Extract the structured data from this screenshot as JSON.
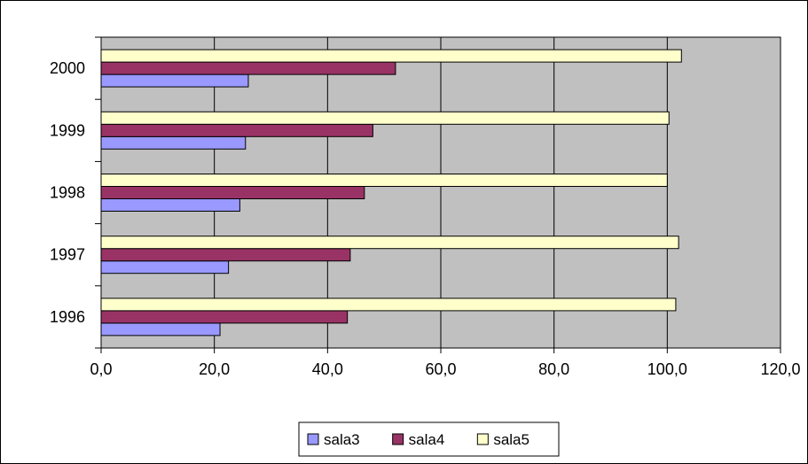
{
  "chart_data": {
    "type": "bar",
    "orientation": "horizontal",
    "categories": [
      "1996",
      "1997",
      "1998",
      "1999",
      "2000"
    ],
    "series": [
      {
        "name": "sala3",
        "values": [
          21.0,
          22.5,
          24.5,
          25.5,
          26.0
        ]
      },
      {
        "name": "sala4",
        "values": [
          43.5,
          44.0,
          46.5,
          48.0,
          52.0
        ]
      },
      {
        "name": "sala5",
        "values": [
          101.5,
          102.0,
          100.0,
          100.3,
          102.5
        ]
      }
    ],
    "xticks": [
      "0,0",
      "20,0",
      "40,0",
      "60,0",
      "80,0",
      "100,0",
      "120,0"
    ],
    "xlim": [
      0,
      120
    ],
    "grid": true,
    "legend_position": "bottom",
    "colors": {
      "sala3": "#9999ff",
      "sala4": "#993366",
      "sala5": "#ffffcc",
      "plot_background": "#c0c0c0",
      "chart_background": "#ffffff",
      "border": "#000000"
    }
  }
}
